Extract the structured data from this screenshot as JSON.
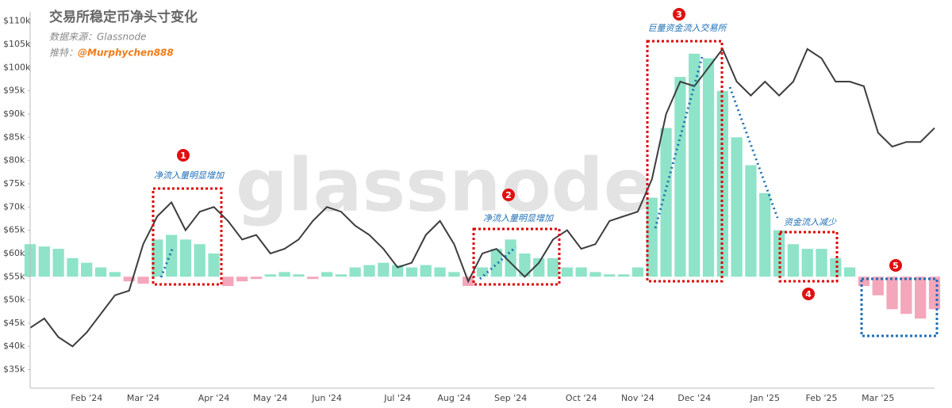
{
  "chart_data": {
    "type": "combo",
    "title": "交易所稳定币净头寸变化",
    "source": "数据来源：Glassnode",
    "author_label": "推特：",
    "author": "@Murphychen888",
    "watermark": "glassnode",
    "categories": [
      null,
      null,
      null,
      null,
      "Feb '24",
      null,
      null,
      null,
      "Mar '24",
      null,
      null,
      null,
      null,
      "Apr '24",
      null,
      null,
      null,
      "May '24",
      null,
      null,
      null,
      "Jun '24",
      null,
      null,
      null,
      null,
      "Jul '24",
      null,
      null,
      null,
      "Aug '24",
      null,
      null,
      null,
      "Sep '24",
      null,
      null,
      null,
      null,
      "Oct '24",
      null,
      null,
      null,
      "Nov '24",
      null,
      null,
      null,
      "Dec '24",
      null,
      null,
      null,
      null,
      "Jan '25",
      null,
      null,
      null,
      "Feb '25",
      null,
      null,
      null,
      "Mar '25",
      null,
      null,
      null,
      null
    ],
    "ylim": [
      31000,
      112000
    ],
    "yticks": [
      {
        "value": 35000,
        "label": "$35k"
      },
      {
        "value": 40000,
        "label": "$40k"
      },
      {
        "value": 45000,
        "label": "$45k"
      },
      {
        "value": 50000,
        "label": "$50k"
      },
      {
        "value": 55000,
        "label": "$55k"
      },
      {
        "value": 60000,
        "label": "$60k"
      },
      {
        "value": 65000,
        "label": "$65k"
      },
      {
        "value": 70000,
        "label": "$70k"
      },
      {
        "value": 75000,
        "label": "$75k"
      },
      {
        "value": 80000,
        "label": "$80k"
      },
      {
        "value": 85000,
        "label": "$85k"
      },
      {
        "value": 90000,
        "label": "$90k"
      },
      {
        "value": 95000,
        "label": "$95k"
      },
      {
        "value": 100000,
        "label": "$100k"
      },
      {
        "value": 105000,
        "label": "$105k"
      },
      {
        "value": 110000,
        "label": "$110k"
      }
    ],
    "grid": false,
    "series": [
      {
        "type": "bar",
        "color": "#8fe3c8",
        "negative_color": "#f4a6ba",
        "baseline": 55000,
        "values": [
          62000,
          61500,
          61000,
          59000,
          58000,
          57000,
          56000,
          54000,
          53500,
          63000,
          64000,
          63000,
          62000,
          60000,
          53000,
          54000,
          54500,
          55500,
          56000,
          55500,
          54500,
          56000,
          55500,
          57000,
          57500,
          58000,
          57500,
          57000,
          57500,
          57000,
          56000,
          53000,
          57000,
          61000,
          63000,
          60000,
          59000,
          59000,
          57000,
          57000,
          56000,
          55500,
          55500,
          57000,
          72000,
          87000,
          98000,
          103000,
          102000,
          95000,
          85000,
          79000,
          73000,
          65000,
          62000,
          61000,
          61000,
          59000,
          57000,
          53000,
          51000,
          48000,
          47000,
          46000,
          48000
        ]
      },
      {
        "type": "line",
        "color": "#3d3d3d",
        "values": [
          44000,
          46000,
          42000,
          40000,
          43000,
          47000,
          51000,
          52000,
          62000,
          68000,
          71000,
          65000,
          69000,
          70000,
          67000,
          63000,
          64000,
          60000,
          61000,
          63000,
          67000,
          70000,
          69000,
          66000,
          64000,
          61000,
          57000,
          58000,
          64000,
          67000,
          62000,
          54000,
          60000,
          61000,
          58000,
          55000,
          58000,
          63000,
          65000,
          61000,
          62000,
          67000,
          68000,
          69000,
          76000,
          90000,
          97000,
          96000,
          100000,
          104000,
          97000,
          94000,
          97000,
          94000,
          97000,
          104000,
          102000,
          97000,
          97000,
          96000,
          86000,
          83000,
          84000,
          84000,
          87000
        ]
      }
    ],
    "annotations": [
      {
        "marker": "1",
        "text": "净流入量明显增加"
      },
      {
        "marker": "2",
        "text": "净流入量明显增加"
      },
      {
        "marker": "3",
        "text": "巨量资金流入交易所"
      },
      {
        "marker": "4",
        "text": "资金流入减少"
      },
      {
        "marker": "5"
      }
    ]
  }
}
